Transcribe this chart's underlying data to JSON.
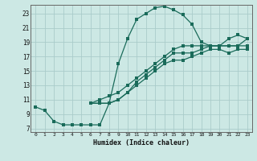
{
  "xlabel": "Humidex (Indice chaleur)",
  "xlim": [
    -0.5,
    23.5
  ],
  "ylim": [
    6.5,
    24.2
  ],
  "xticks": [
    0,
    1,
    2,
    3,
    4,
    5,
    6,
    7,
    8,
    9,
    10,
    11,
    12,
    13,
    14,
    15,
    16,
    17,
    18,
    19,
    20,
    21,
    22,
    23
  ],
  "yticks": [
    7,
    9,
    11,
    13,
    15,
    17,
    19,
    21,
    23
  ],
  "bg_color": "#cce8e4",
  "grid_color": "#aaccca",
  "line_color": "#1a6b5a",
  "line1_x": [
    0,
    1,
    2,
    3,
    4,
    5,
    6,
    7,
    8,
    9,
    10,
    11,
    12,
    13,
    14,
    15,
    16,
    17,
    18,
    19,
    20,
    21,
    22,
    23
  ],
  "line1_y": [
    10,
    9.5,
    8.0,
    7.5,
    7.5,
    7.5,
    7.5,
    7.5,
    10.5,
    16.0,
    19.5,
    22.2,
    23.0,
    23.8,
    24.0,
    23.5,
    22.8,
    21.5,
    19.0,
    18.5,
    18.5,
    19.5,
    20.0,
    19.5
  ],
  "line2_x": [
    6,
    7,
    8,
    9,
    10,
    11,
    12,
    13,
    14,
    15,
    16,
    17,
    18,
    19,
    20,
    21,
    22,
    23
  ],
  "line2_y": [
    10.5,
    10.5,
    10.5,
    11.0,
    12.0,
    13.0,
    14.0,
    15.0,
    16.0,
    16.5,
    16.5,
    17.0,
    17.5,
    18.0,
    18.0,
    17.5,
    18.0,
    18.0
  ],
  "line3_x": [
    6,
    7,
    8,
    9,
    10,
    11,
    12,
    13,
    14,
    15,
    16,
    17,
    18,
    19,
    20,
    21,
    22,
    23
  ],
  "line3_y": [
    10.5,
    10.5,
    10.5,
    11.0,
    12.0,
    13.5,
    14.5,
    15.5,
    16.5,
    17.5,
    17.5,
    17.5,
    18.0,
    18.5,
    18.5,
    18.5,
    18.5,
    18.5
  ],
  "line4_x": [
    6,
    7,
    8,
    9,
    10,
    11,
    12,
    13,
    14,
    15,
    16,
    17,
    18,
    19,
    20,
    21,
    22,
    23
  ],
  "line4_y": [
    10.5,
    11.0,
    11.5,
    12.0,
    13.0,
    14.0,
    15.0,
    16.0,
    17.0,
    18.0,
    18.5,
    18.5,
    18.5,
    18.5,
    18.5,
    18.5,
    18.5,
    19.5
  ]
}
